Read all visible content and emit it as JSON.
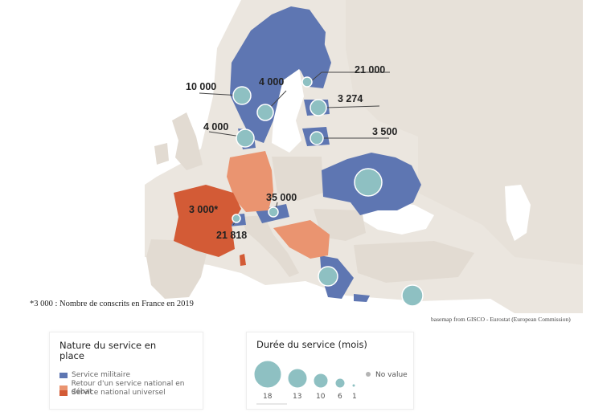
{
  "colors": {
    "sea": "#ffffff",
    "land_other": "#ebe6df",
    "land_neutral": "#e2dbd2",
    "military": "#5e76b2",
    "debate": "#ea9470",
    "universal": "#d35b36",
    "circle": "#8ec0c2",
    "circle_stroke": "#ffffff"
  },
  "map": {
    "labels": [
      {
        "text": "21 000"
      },
      {
        "text": "10 000"
      },
      {
        "text": "4 000"
      },
      {
        "text": "3 274"
      },
      {
        "text": "4 000"
      },
      {
        "text": "3 500"
      },
      {
        "text": "35 000"
      },
      {
        "text": "3 000*"
      },
      {
        "text": "21 818"
      }
    ],
    "footnote": "*3 000 : Nombre de conscrits en France en 2019",
    "attribution": "basemap from GISCO - Eurostat (European Commission)"
  },
  "legend_nature": {
    "title": "Nature du service en place",
    "items": [
      {
        "label": "Service militaire",
        "color": "#5e76b2"
      },
      {
        "label": "Retour d'un service national en débat",
        "color": "#ea9470"
      },
      {
        "label": "Service national universel",
        "color": "#d35b36"
      }
    ]
  },
  "legend_duree": {
    "title": "Durée du service (mois)",
    "sizes": [
      "18",
      "13",
      "10",
      "6",
      "1"
    ],
    "no_value_label": "No value"
  }
}
